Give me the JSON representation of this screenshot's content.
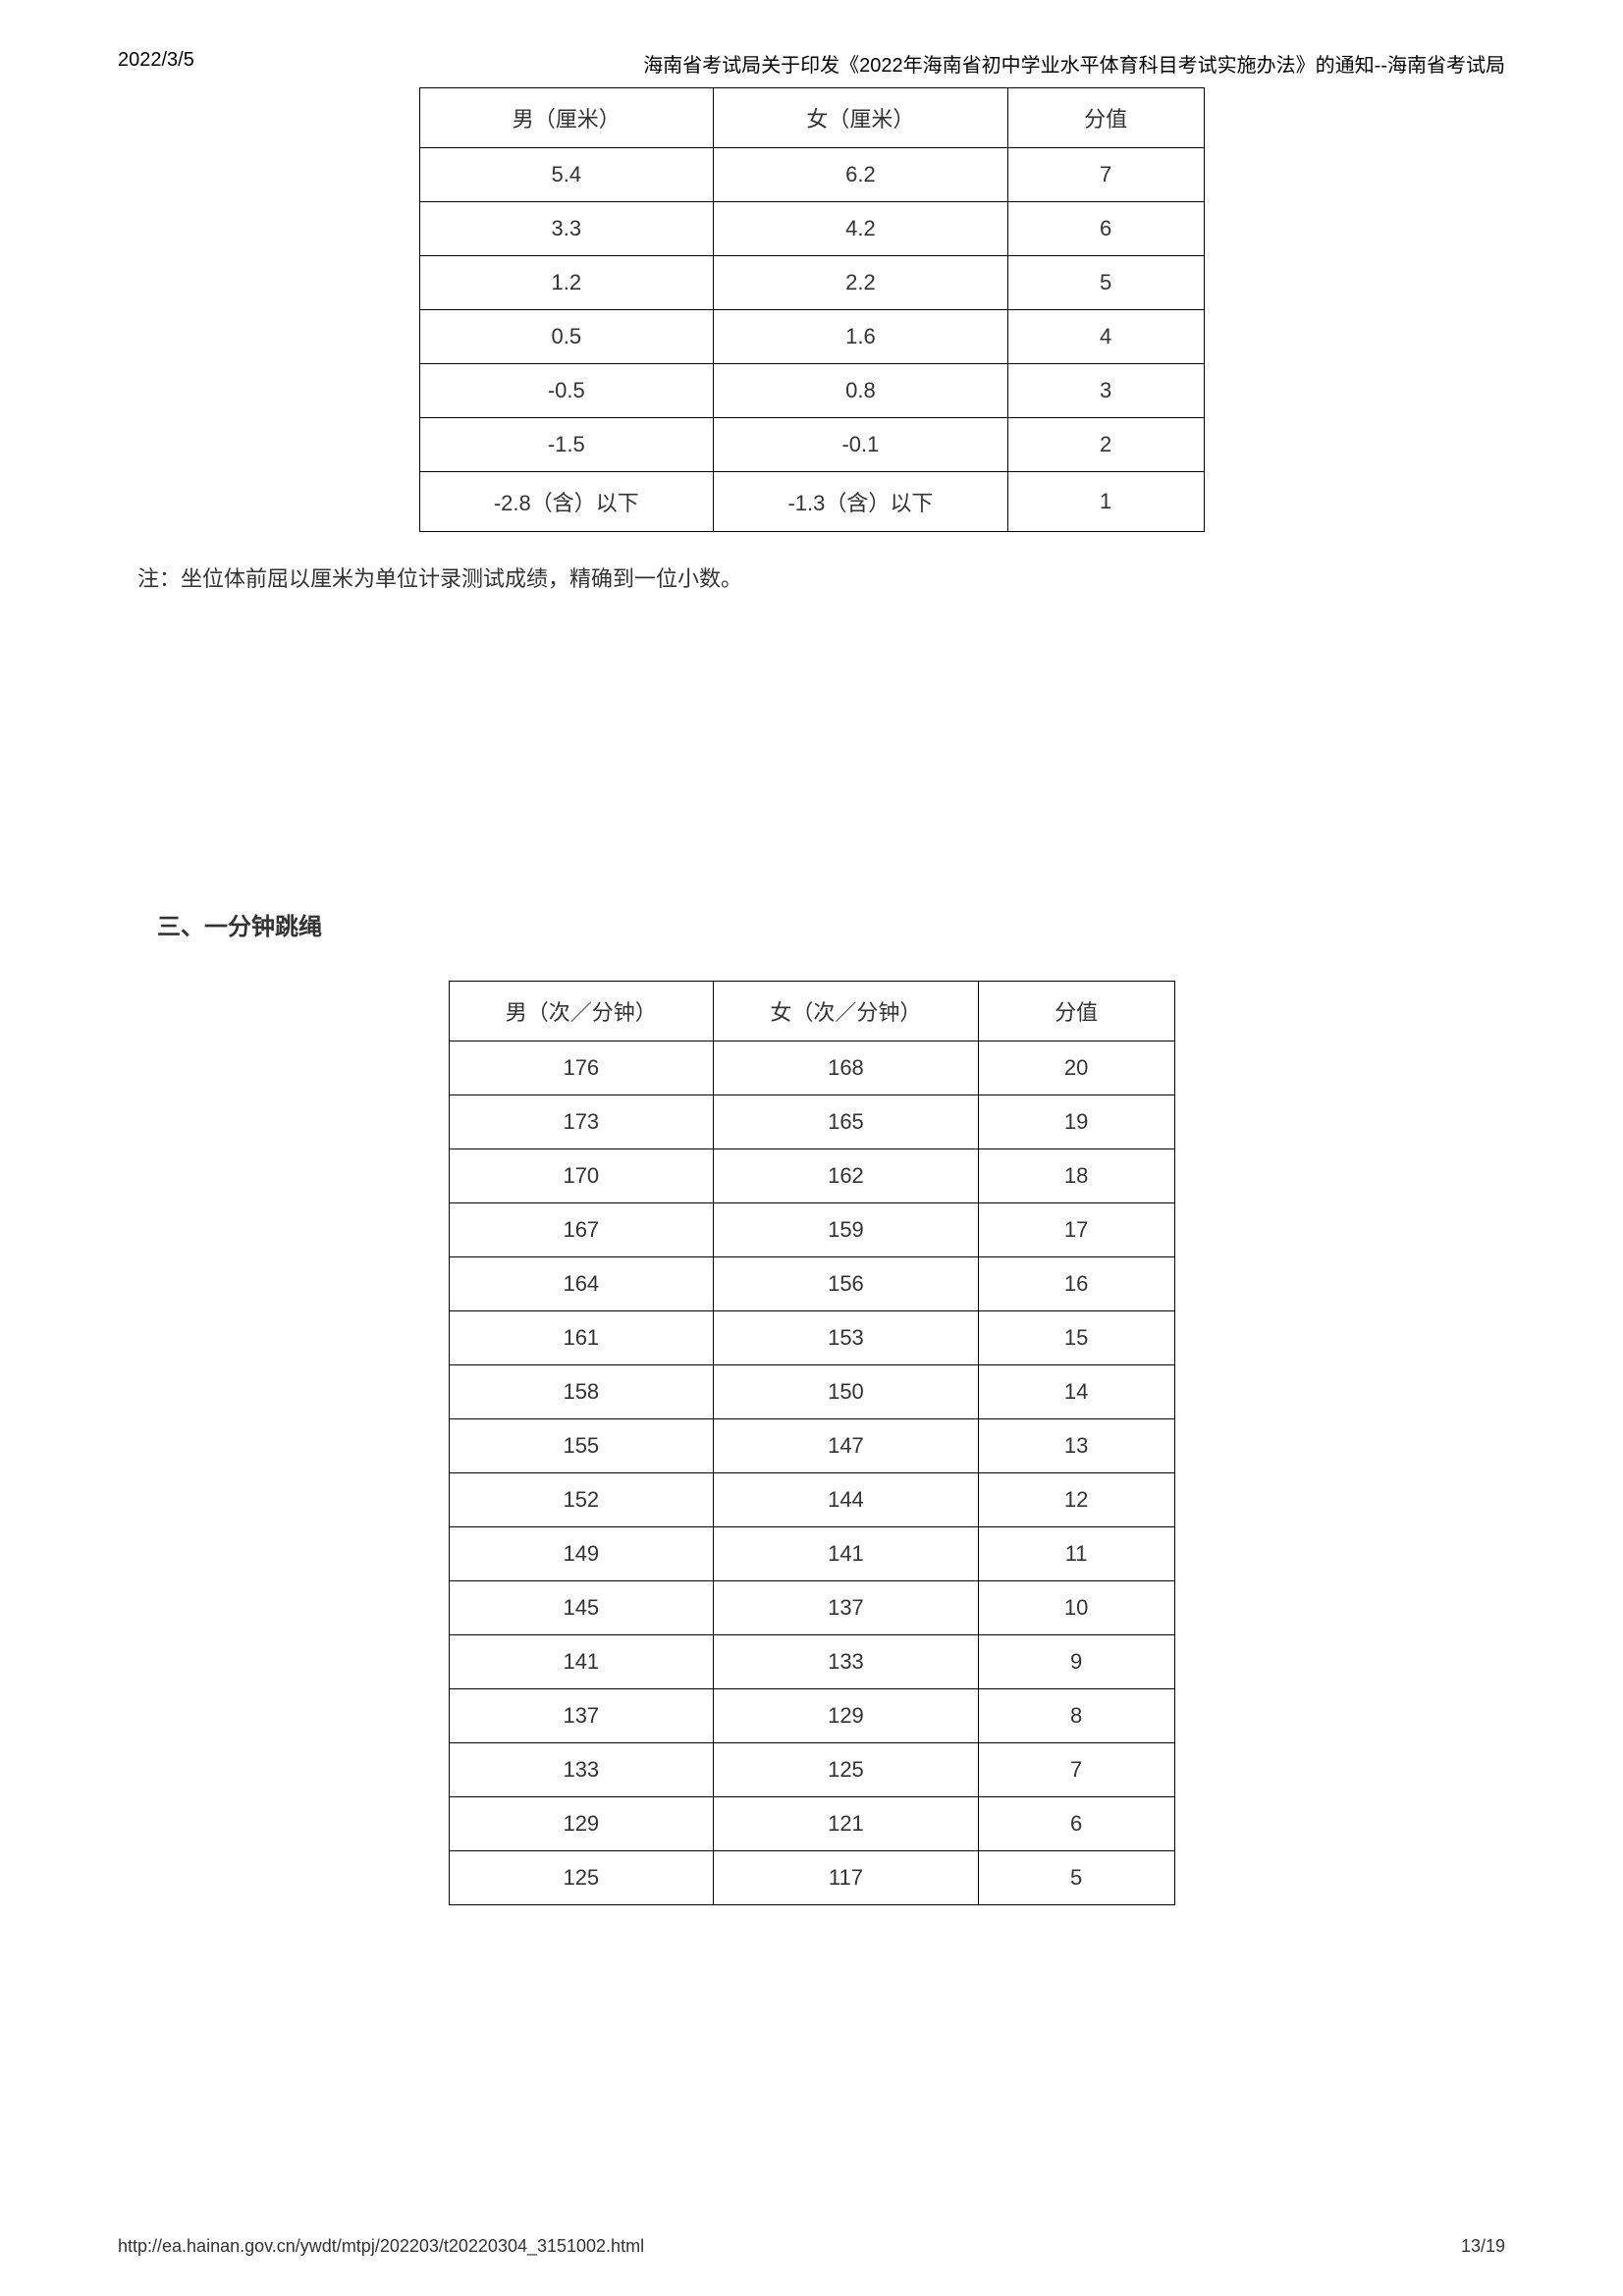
{
  "header": {
    "date": "2022/3/5",
    "title": "海南省考试局关于印发《2022年海南省初中学业水平体育科目考试实施办法》的通知--海南省考试局"
  },
  "table1": {
    "headers": [
      "男（厘米）",
      "女（厘米）",
      "分值"
    ],
    "rows": [
      [
        "5.4",
        "6.2",
        "7"
      ],
      [
        "3.3",
        "4.2",
        "6"
      ],
      [
        "1.2",
        "2.2",
        "5"
      ],
      [
        "0.5",
        "1.6",
        "4"
      ],
      [
        "-0.5",
        "0.8",
        "3"
      ],
      [
        "-1.5",
        "-0.1",
        "2"
      ],
      [
        "-2.8（含）以下",
        "-1.3（含）以下",
        "1"
      ]
    ]
  },
  "note": "注：坐位体前屈以厘米为单位计录测试成绩，精确到一位小数。",
  "section_title": "三、一分钟跳绳",
  "table2": {
    "headers": [
      "男（次／分钟）",
      "女（次／分钟）",
      "分值"
    ],
    "rows": [
      [
        "176",
        "168",
        "20"
      ],
      [
        "173",
        "165",
        "19"
      ],
      [
        "170",
        "162",
        "18"
      ],
      [
        "167",
        "159",
        "17"
      ],
      [
        "164",
        "156",
        "16"
      ],
      [
        "161",
        "153",
        "15"
      ],
      [
        "158",
        "150",
        "14"
      ],
      [
        "155",
        "147",
        "13"
      ],
      [
        "152",
        "144",
        "12"
      ],
      [
        "149",
        "141",
        "11"
      ],
      [
        "145",
        "137",
        "10"
      ],
      [
        "141",
        "133",
        "9"
      ],
      [
        "137",
        "129",
        "8"
      ],
      [
        "133",
        "125",
        "7"
      ],
      [
        "129",
        "121",
        "6"
      ],
      [
        "125",
        "117",
        "5"
      ]
    ]
  },
  "footer": {
    "url": "http://ea.hainan.gov.cn/ywdt/mtpj/202203/t20220304_3151002.html",
    "page": "13/19"
  }
}
